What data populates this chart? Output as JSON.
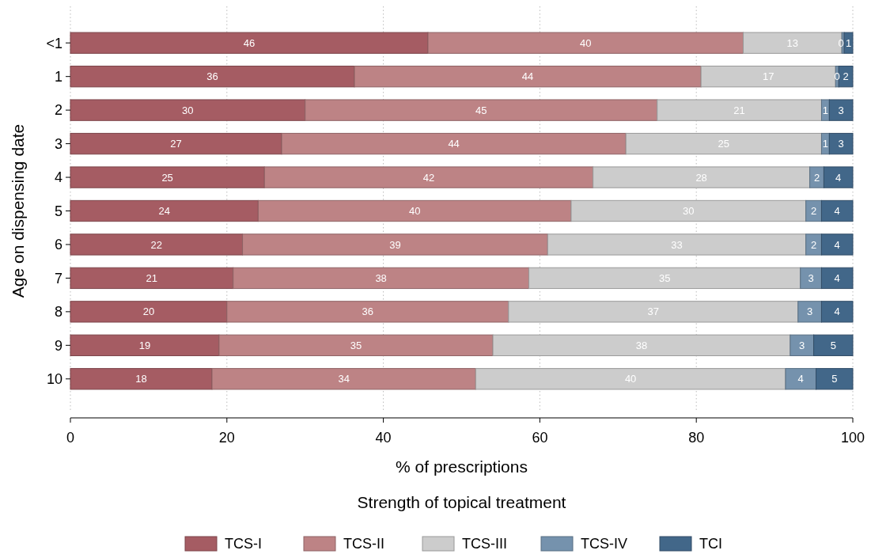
{
  "chart_data": {
    "type": "bar",
    "orientation": "horizontal",
    "stacked": true,
    "xlabel": "% of prescriptions",
    "ylabel": "Age on dispensing date",
    "legend_title": "Strength of topical treatment",
    "categories": [
      "<1",
      "1",
      "2",
      "3",
      "4",
      "5",
      "6",
      "7",
      "8",
      "9",
      "10"
    ],
    "series": [
      {
        "name": "TCS-I",
        "color": "#a55c63",
        "values": [
          45.7,
          36.3,
          30,
          27,
          24.8,
          24,
          22,
          20.8,
          20,
          19,
          18.1
        ],
        "value_labels": [
          "46",
          "36",
          "30",
          "27",
          "25",
          "24",
          "22",
          "21",
          "20",
          "19",
          "18"
        ]
      },
      {
        "name": "TCS-II",
        "color": "#bd8385",
        "values": [
          40.3,
          44.3,
          45,
          44,
          42,
          40,
          39,
          37.8,
          36,
          35,
          33.7
        ],
        "value_labels": [
          "40",
          "44",
          "45",
          "44",
          "42",
          "40",
          "39",
          "38",
          "36",
          "35",
          "34"
        ]
      },
      {
        "name": "TCS-III",
        "color": "#cccccc",
        "values": [
          12.6,
          17.2,
          21,
          25,
          27.7,
          30,
          33,
          34.7,
          37,
          38,
          39.6
        ],
        "value_labels": [
          "13",
          "17",
          "21",
          "25",
          "28",
          "30",
          "33",
          "35",
          "37",
          "38",
          "40"
        ]
      },
      {
        "name": "TCS-IV",
        "color": "#7592ad",
        "values": [
          0.3,
          0.4,
          1,
          1,
          1.8,
          2,
          2,
          2.7,
          3,
          3,
          3.9
        ],
        "value_labels": [
          "0",
          "0",
          "1",
          "1",
          "2",
          "2",
          "2",
          "3",
          "3",
          "3",
          "4"
        ]
      },
      {
        "name": "TCI",
        "color": "#426789",
        "values": [
          1.1,
          1.8,
          3,
          3,
          3.7,
          4,
          4,
          4,
          4,
          5,
          4.7
        ],
        "value_labels": [
          "1",
          "2",
          "3",
          "3",
          "4",
          "4",
          "4",
          "4",
          "4",
          "5",
          "5"
        ]
      }
    ],
    "xlim": [
      0,
      100
    ],
    "xticks": [
      0,
      20,
      40,
      60,
      80,
      100
    ],
    "grid": "x",
    "legend": "bottom"
  }
}
